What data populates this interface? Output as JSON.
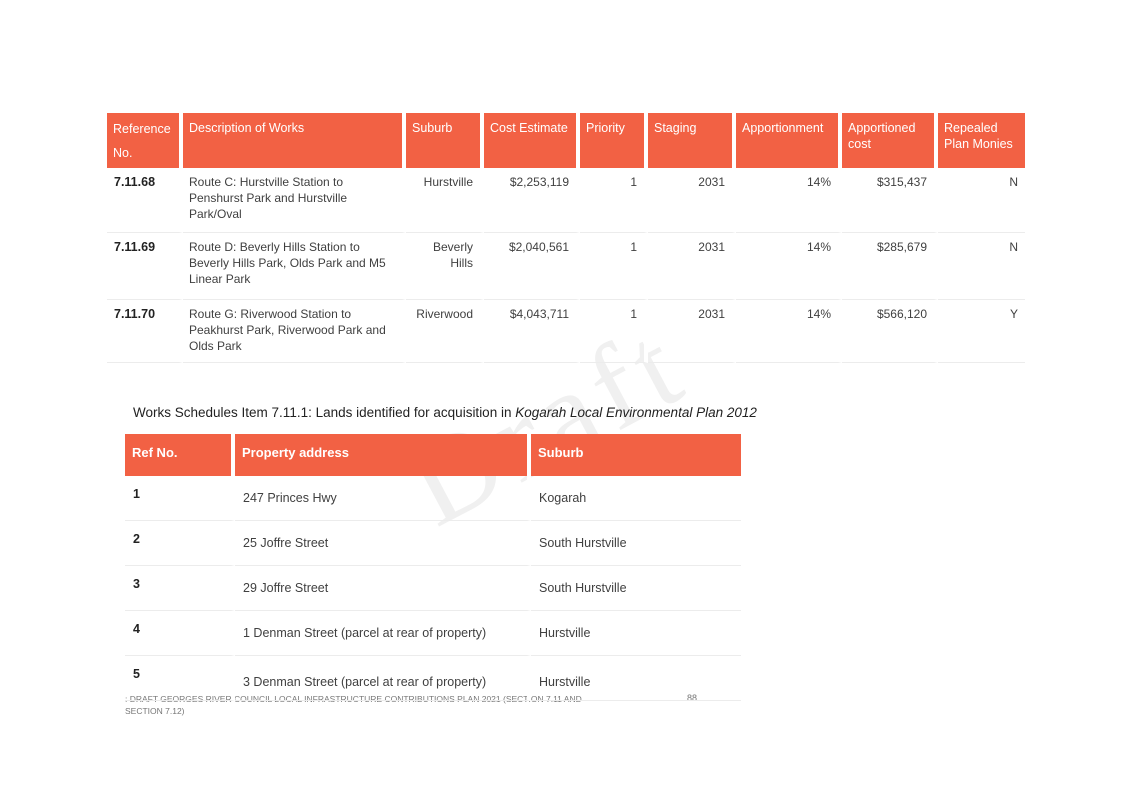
{
  "works_table": {
    "headers": [
      "Reference No.",
      "Description of Works",
      "Suburb",
      "Cost Estimate",
      "Priority",
      "Staging",
      "Apportionment",
      "Apportioned cost",
      "Repealed Plan Monies"
    ],
    "rows": [
      {
        "ref": "7.11.68",
        "description": "Route C: Hurstville Station to Penshurst Park and Hurstville Park/Oval",
        "suburb": "Hurstville",
        "cost": "$2,253,119",
        "priority": "1",
        "staging": "2031",
        "apportionment": "14%",
        "apportioned_cost": "$315,437",
        "repealed": "N"
      },
      {
        "ref": "7.11.69",
        "description": "Route D: Beverly Hills Station to Beverly Hills Park, Olds Park and M5 Linear Park",
        "suburb": "Beverly Hills",
        "cost": "$2,040,561",
        "priority": "1",
        "staging": "2031",
        "apportionment": "14%",
        "apportioned_cost": "$285,679",
        "repealed": "N"
      },
      {
        "ref": "7.11.70",
        "description": "Route G: Riverwood Station to Peakhurst Park, Riverwood Park and Olds Park",
        "suburb": "Riverwood",
        "cost": "$4,043,711",
        "priority": "1",
        "staging": "2031",
        "apportionment": "14%",
        "apportioned_cost": "$566,120",
        "repealed": "Y"
      }
    ]
  },
  "caption": {
    "prefix": "Works Schedules Item 7.11.1: Lands identified for acquisition in ",
    "italic": "Kogarah Local Environmental Plan 2012"
  },
  "lands_table": {
    "headers": [
      "Ref No.",
      "Property address",
      "Suburb"
    ],
    "rows": [
      {
        "ref": "1",
        "address": "247 Princes Hwy",
        "suburb": "Kogarah"
      },
      {
        "ref": "2",
        "address": "25 Joffre Street",
        "suburb": "South Hurstville"
      },
      {
        "ref": "3",
        "address": "29 Joffre Street",
        "suburb": "South Hurstville"
      },
      {
        "ref": "4",
        "address": "1 Denman Street (parcel at rear of property)",
        "suburb": "Hurstville"
      },
      {
        "ref": "5",
        "address": "3 Denman Street (parcel at rear of property)",
        "suburb": "Hurstville"
      }
    ]
  },
  "footer": {
    "text": ": DRAFT GEORGES RIVER COUNCIL LOCAL INFRASTRUCTURE CONTRIBUTIONS PLAN 2021 (SECTION 7.11 AND SECTION 7.12)",
    "page": "88"
  }
}
